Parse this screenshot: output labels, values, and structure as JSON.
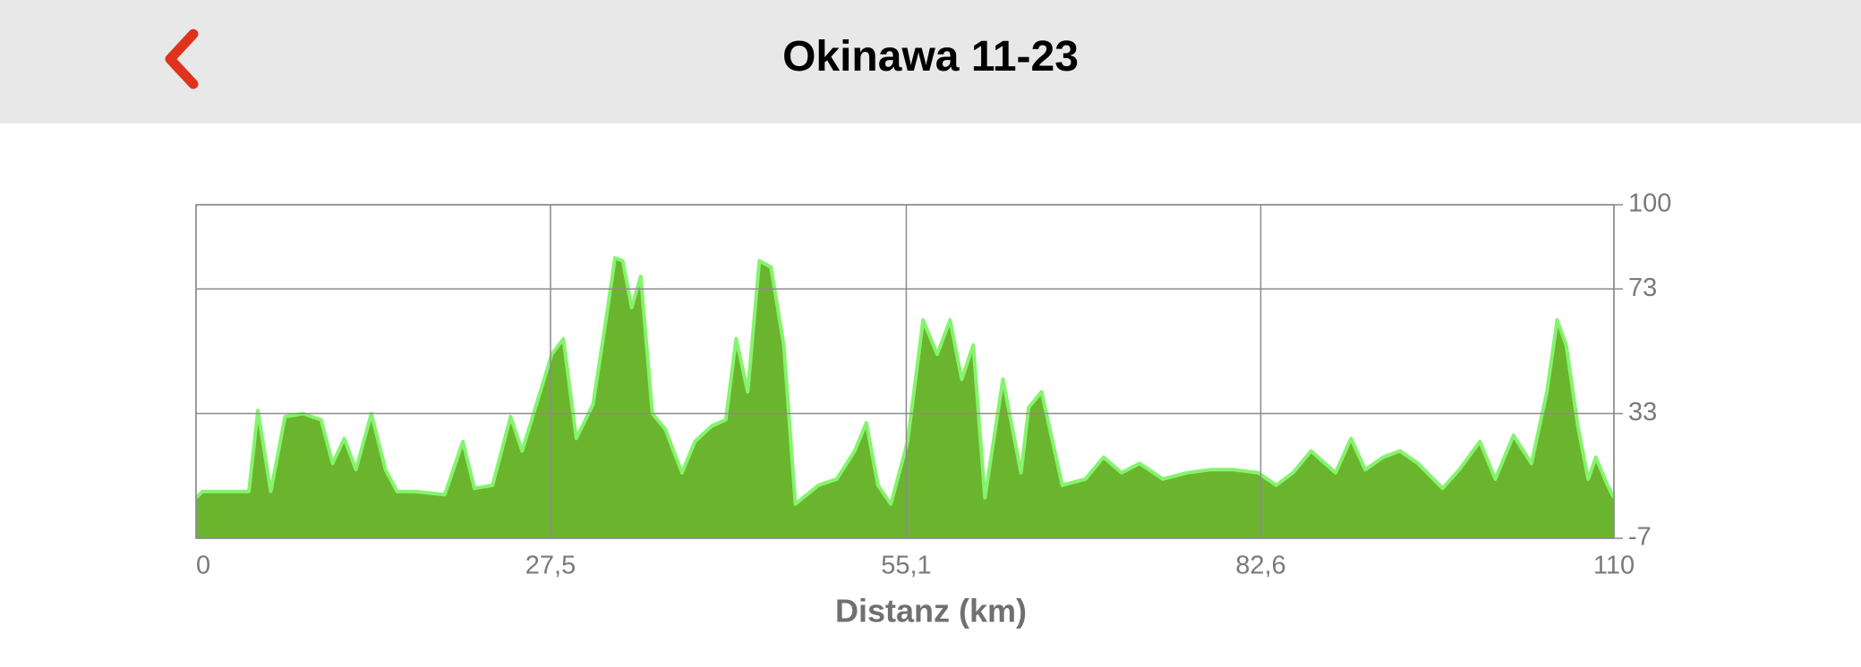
{
  "header": {
    "title": "Okinawa 11-23"
  },
  "chart_data": {
    "type": "area",
    "x_label": "Distanz (km)",
    "x": [
      0,
      0.5,
      4.1,
      4.8,
      5.8,
      6.9,
      8.3,
      9.7,
      10.6,
      11.5,
      12.4,
      13.6,
      14.7,
      15.6,
      17.0,
      19.3,
      20.7,
      21.6,
      23.0,
      24.4,
      25.3,
      26.7,
      27.6,
      28.5,
      29.5,
      30.8,
      31.8,
      32.5,
      33.1,
      33.8,
      34.5,
      35.4,
      36.4,
      37.7,
      38.7,
      40.0,
      41.1,
      41.9,
      42.8,
      43.7,
      44.6,
      45.6,
      46.5,
      48.3,
      49.7,
      51.1,
      52.0,
      52.9,
      53.9,
      55.2,
      56.4,
      57.5,
      58.5,
      59.4,
      60.3,
      61.2,
      62.6,
      64.0,
      64.6,
      65.6,
      67.2,
      69.0,
      70.4,
      71.8,
      73.2,
      75.0,
      76.9,
      78.7,
      80.5,
      82.4,
      83.8,
      85.1,
      86.5,
      88.4,
      89.6,
      90.7,
      92.1,
      93.4,
      94.8,
      96.7,
      98.0,
      99.6,
      100.8,
      102.2,
      103.6,
      104.8,
      105.6,
      106.3,
      107.2,
      108.0,
      108.6,
      109.5,
      110
    ],
    "values": [
      6,
      8,
      8,
      34,
      8,
      32,
      33,
      31,
      17,
      25,
      15,
      33,
      15,
      8,
      8,
      7,
      24,
      9,
      10,
      32,
      21,
      40,
      52,
      57,
      25,
      36,
      63,
      83,
      82,
      67,
      77,
      33,
      28,
      14,
      24,
      29,
      31,
      57,
      40,
      82,
      80,
      55,
      4,
      10,
      12,
      21,
      30,
      10,
      4,
      24,
      63,
      52,
      63,
      44,
      55,
      6,
      44,
      14,
      35,
      40,
      10,
      12,
      19,
      14,
      17,
      12,
      14,
      15,
      15,
      14,
      10,
      14,
      21,
      14,
      25,
      15,
      19,
      21,
      17,
      9,
      15,
      24,
      12,
      26,
      17,
      40,
      63,
      55,
      29,
      12,
      19,
      10,
      6
    ],
    "color": "#6bb42e",
    "line_color": "#84f46c",
    "xlim": [
      0,
      110
    ],
    "xticks": [
      0,
      {
        "value": 27.5,
        "label": "27,5"
      },
      {
        "value": 55.1,
        "label": "55,1"
      },
      {
        "value": 82.6,
        "label": "82,6"
      },
      110
    ],
    "ylim": [
      -7,
      100
    ],
    "yticks": [
      100,
      73,
      33,
      -7
    ],
    "y_axis_side": "right",
    "grid": true
  }
}
